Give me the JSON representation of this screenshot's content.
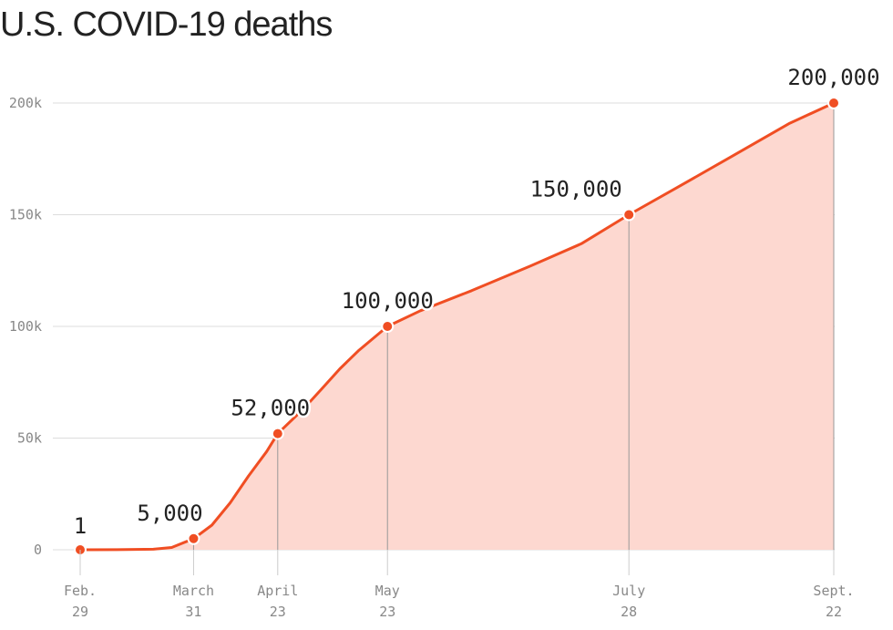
{
  "title": "U.S. COVID-19 deaths",
  "colors": {
    "line": "#f04e23",
    "area": "#fdd8d0",
    "grid": "#dddddd",
    "text": "#222222",
    "tick": "#888888"
  },
  "chart_data": {
    "type": "area",
    "title": "U.S. COVID-19 deaths",
    "xlabel": "",
    "ylabel": "",
    "x_range": [
      "2020-02-29",
      "2020-09-22"
    ],
    "ylim": [
      0,
      200000
    ],
    "grid": true,
    "y_ticks": [
      {
        "value": 0,
        "label": "0"
      },
      {
        "value": 50000,
        "label": "50k"
      },
      {
        "value": 100000,
        "label": "100k"
      },
      {
        "value": 150000,
        "label": "150k"
      },
      {
        "value": 200000,
        "label": "200k"
      }
    ],
    "x_ticks": [
      {
        "date": "2020-02-29",
        "line1": "Feb.",
        "line2": "29"
      },
      {
        "date": "2020-03-31",
        "line1": "March",
        "line2": "31"
      },
      {
        "date": "2020-04-23",
        "line1": "April",
        "line2": "23"
      },
      {
        "date": "2020-05-23",
        "line1": "May",
        "line2": "23"
      },
      {
        "date": "2020-07-28",
        "line1": "July",
        "line2": "28"
      },
      {
        "date": "2020-09-22",
        "line1": "Sept.",
        "line2": "22"
      }
    ],
    "series": [
      {
        "points": [
          [
            "2020-02-29",
            1
          ],
          [
            "2020-03-10",
            30
          ],
          [
            "2020-03-20",
            250
          ],
          [
            "2020-03-25",
            1000
          ],
          [
            "2020-03-31",
            5000
          ],
          [
            "2020-04-05",
            11000
          ],
          [
            "2020-04-10",
            21000
          ],
          [
            "2020-04-15",
            33000
          ],
          [
            "2020-04-20",
            44000
          ],
          [
            "2020-04-23",
            52000
          ],
          [
            "2020-04-30",
            63000
          ],
          [
            "2020-05-05",
            72000
          ],
          [
            "2020-05-10",
            81000
          ],
          [
            "2020-05-15",
            89000
          ],
          [
            "2020-05-23",
            100000
          ],
          [
            "2020-06-01",
            107000
          ],
          [
            "2020-06-15",
            116000
          ],
          [
            "2020-07-01",
            127000
          ],
          [
            "2020-07-15",
            137000
          ],
          [
            "2020-07-28",
            150000
          ],
          [
            "2020-08-10",
            162000
          ],
          [
            "2020-08-25",
            176000
          ],
          [
            "2020-09-10",
            191000
          ],
          [
            "2020-09-22",
            200000
          ]
        ]
      }
    ],
    "annotations": [
      {
        "date": "2020-02-29",
        "value": 1,
        "label": "1"
      },
      {
        "date": "2020-03-31",
        "value": 5000,
        "label": "5,000"
      },
      {
        "date": "2020-04-23",
        "value": 52000,
        "label": "52,000"
      },
      {
        "date": "2020-05-23",
        "value": 100000,
        "label": "100,000"
      },
      {
        "date": "2020-07-28",
        "value": 150000,
        "label": "150,000"
      },
      {
        "date": "2020-09-22",
        "value": 200000,
        "label": "200,000"
      }
    ]
  }
}
